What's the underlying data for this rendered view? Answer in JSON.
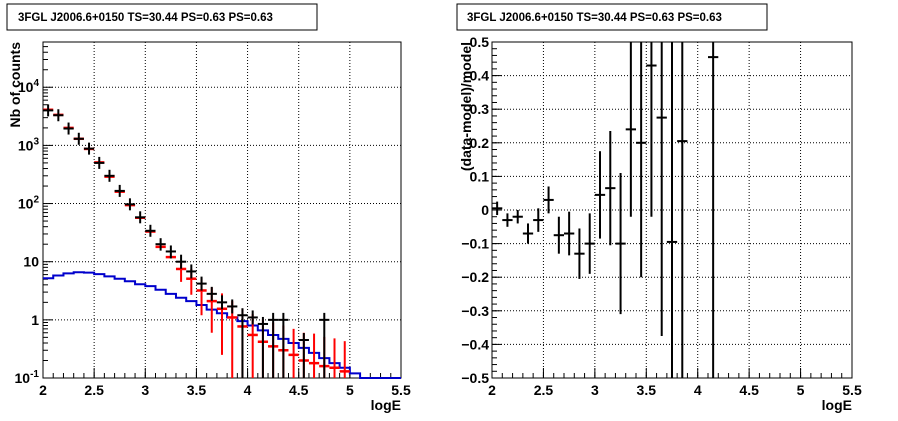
{
  "chart_data": [
    {
      "type": "histogram",
      "title": "3FGL J2006.6+0150 TS=30.44 PS=0.63 PS=0.63",
      "xlabel": "logE",
      "ylabel": "Nb of counts",
      "xlim": [
        2,
        5.5
      ],
      "ylim": [
        0.1,
        60000
      ],
      "yscale": "log",
      "grid": true,
      "x_ticks": [
        "2",
        "2.5",
        "3",
        "3.5",
        "4",
        "4.5",
        "5",
        "5.5"
      ],
      "y_ticks": [
        "10^-1",
        "1",
        "10",
        "10^2",
        "10^3",
        "10^4"
      ],
      "colors": {
        "data": "#000000",
        "model": "#ff0000",
        "background": "#0000cc"
      },
      "series": [
        {
          "style": "black crosses",
          "x": [
            2.05,
            2.15,
            2.25,
            2.35,
            2.45,
            2.55,
            2.65,
            2.75,
            2.85,
            2.95,
            3.05,
            3.15,
            3.25,
            3.35,
            3.45,
            3.55,
            3.65,
            3.75,
            3.85,
            3.95,
            4.05,
            4.15,
            4.25,
            4.35,
            4.45,
            4.55,
            4.65,
            4.75,
            4.85,
            4.95
          ],
          "y": [
            4000,
            3300,
            1950,
            1300,
            880,
            500,
            300,
            165,
            97,
            58,
            34,
            20,
            15,
            10,
            6.8,
            4.2,
            2.8,
            2,
            1.7,
            1.2,
            1.1,
            0.85,
            1.0,
            1.0,
            0,
            0.45,
            0,
            1.0,
            0,
            0
          ],
          "yerr": [
            63,
            57,
            44,
            36,
            30,
            22,
            17,
            13,
            10,
            7.6,
            5.8,
            4.5,
            3.9,
            3.2,
            2.6,
            2.0,
            1.7,
            1.4,
            1.3,
            1.1,
            1.0,
            0.9,
            1.0,
            1.0,
            0,
            0.67,
            0,
            1.0,
            0,
            0
          ]
        },
        {
          "style": "red crosses",
          "x": [
            2.05,
            2.15,
            2.25,
            2.35,
            2.45,
            2.55,
            2.65,
            2.75,
            2.85,
            2.95,
            3.05,
            3.15,
            3.25,
            3.35,
            3.45,
            3.55,
            3.65,
            3.75,
            3.85,
            3.95,
            4.05,
            4.15,
            4.25,
            4.35,
            4.45,
            4.55,
            4.65,
            4.75,
            4.85,
            4.95
          ],
          "y": [
            4100,
            3350,
            2000,
            1300,
            870,
            510,
            290,
            160,
            94,
            57,
            33,
            18,
            12,
            7.5,
            5.1,
            3.2,
            2.1,
            1.55,
            1.1,
            0.77,
            0.55,
            0.42,
            0.35,
            0.3,
            0.25,
            0.2,
            0.18,
            0.16,
            0.15,
            0.13
          ],
          "yerr": [
            0,
            0,
            0,
            0,
            0,
            0,
            0,
            0,
            0,
            0,
            0,
            0,
            0,
            3.0,
            2.4,
            2.0,
            1.5,
            1.3,
            1.0,
            0.8,
            0.7,
            0.6,
            0.55,
            0.5,
            0.45,
            0.4,
            0.4,
            0.35,
            0.33,
            0.3
          ]
        },
        {
          "style": "blue step line",
          "x": [
            2.0,
            2.1,
            2.2,
            2.3,
            2.4,
            2.5,
            2.6,
            2.7,
            2.8,
            2.9,
            3.0,
            3.1,
            3.2,
            3.3,
            3.4,
            3.5,
            3.6,
            3.7,
            3.8,
            3.9,
            4.0,
            4.1,
            4.2,
            4.3,
            4.4,
            4.5,
            4.6,
            4.7,
            4.8,
            4.9,
            5.0,
            5.1,
            5.2,
            5.3,
            5.4
          ],
          "y": [
            5.2,
            5.8,
            6.3,
            6.6,
            6.5,
            6.1,
            5.6,
            5.1,
            4.6,
            4.1,
            3.8,
            3.3,
            2.8,
            2.4,
            2.1,
            1.8,
            1.5,
            1.3,
            1.1,
            0.95,
            0.8,
            0.66,
            0.55,
            0.47,
            0.4,
            0.33,
            0.27,
            0.22,
            0.18,
            0.15,
            0.12,
            0.1,
            0.1,
            0.1,
            0.1
          ]
        }
      ]
    },
    {
      "type": "scatter",
      "title": "3FGL J2006.6+0150 TS=30.44 PS=0.63 PS=0.63",
      "xlabel": "logE",
      "ylabel": "(data-model)/model",
      "xlim": [
        2,
        5.5
      ],
      "ylim": [
        -0.5,
        0.5
      ],
      "grid": true,
      "x_ticks": [
        "2",
        "2.5",
        "3",
        "3.5",
        "4",
        "4.5",
        "5",
        "5.5"
      ],
      "y_ticks": [
        "−0.5",
        "−0.4",
        "−0.3",
        "−0.2",
        "−0.1",
        "0",
        "0.1",
        "0.2",
        "0.3",
        "0.4",
        "0.5"
      ],
      "series": [
        {
          "style": "black crosses",
          "x": [
            2.05,
            2.15,
            2.25,
            2.35,
            2.45,
            2.55,
            2.65,
            2.75,
            2.85,
            2.95,
            3.05,
            3.15,
            3.25,
            3.35,
            3.45,
            3.55,
            3.65,
            3.75,
            3.85,
            4.15
          ],
          "y": [
            0.005,
            -0.03,
            -0.02,
            -0.07,
            -0.03,
            0.03,
            -0.075,
            -0.07,
            -0.13,
            -0.1,
            0.045,
            0.065,
            -0.1,
            0.24,
            0.2,
            0.43,
            0.275,
            -0.095,
            0.205,
            0.455
          ],
          "yerr": [
            0.02,
            0.02,
            0.02,
            0.03,
            0.035,
            0.04,
            0.055,
            0.065,
            0.075,
            0.09,
            0.13,
            0.17,
            0.21,
            0.26,
            0.4,
            0.45,
            0.65,
            0.65,
            0.72,
            1.0
          ]
        }
      ]
    }
  ]
}
